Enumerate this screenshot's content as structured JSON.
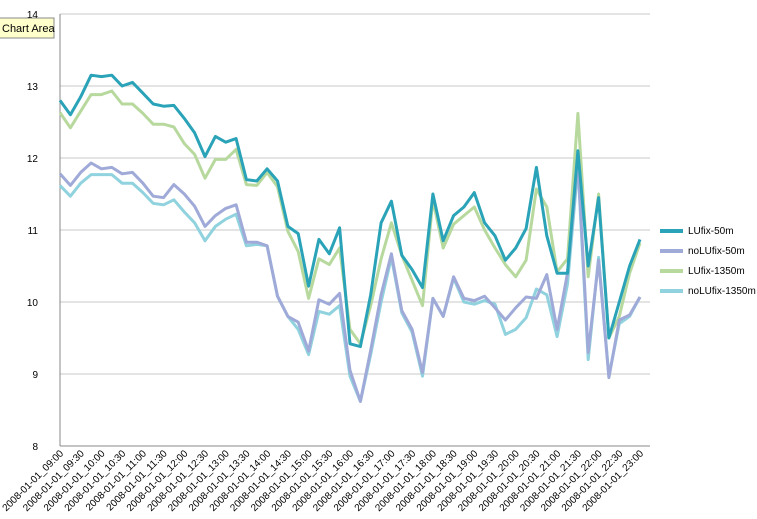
{
  "tooltip": "Chart Area",
  "chart_data": {
    "type": "line",
    "categories": [
      "2008-01-01_09:00",
      null,
      "2008-01-01_09:30",
      null,
      "2008-01-01_10:00",
      null,
      "2008-01-01_10:30",
      null,
      "2008-01-01_11:00",
      null,
      "2008-01-01_11:30",
      null,
      "2008-01-01_12:00",
      null,
      "2008-01-01_12:30",
      null,
      "2008-01-01_13:00",
      null,
      "2008-01-01_13:30",
      null,
      "2008-01-01_14:00",
      null,
      "2008-01-01_14:30",
      null,
      "2008-01-01_15:00",
      null,
      "2008-01-01_15:30",
      null,
      "2008-01-01_16:00",
      null,
      "2008-01-01_16:30",
      null,
      "2008-01-01_17:00",
      null,
      "2008-01-01_17:30",
      null,
      "2008-01-01_18:00",
      null,
      "2008-01-01_18:30",
      null,
      "2008-01-01_19:00",
      null,
      "2008-01-01_19:30",
      null,
      "2008-01-01_20:00",
      null,
      "2008-01-01_20:30",
      null,
      "2008-01-01_21:00",
      null,
      "2008-01-01_21:30",
      null,
      "2008-01-01_22:00",
      null,
      "2008-01-01_22:30",
      null,
      "2008-01-01_23:00"
    ],
    "series": [
      {
        "name": "LUfix-50m",
        "color": "#2aa3b8",
        "values": [
          12.8,
          12.6,
          12.85,
          13.15,
          13.13,
          13.15,
          13.0,
          13.05,
          12.9,
          12.75,
          12.72,
          12.73,
          12.55,
          12.35,
          12.02,
          12.3,
          12.22,
          12.27,
          11.7,
          11.68,
          11.85,
          11.68,
          11.05,
          10.95,
          10.22,
          10.87,
          10.67,
          11.03,
          9.42,
          9.38,
          10.1,
          11.1,
          11.4,
          10.65,
          10.45,
          10.2,
          11.5,
          10.85,
          11.2,
          11.32,
          11.52,
          11.1,
          10.92,
          10.58,
          10.75,
          11.02,
          11.87,
          10.92,
          10.4,
          10.4,
          12.1,
          10.5,
          11.45,
          9.5,
          10.0,
          10.5,
          10.87
        ]
      },
      {
        "name": "noLUfix-50m",
        "color": "#a0aad8",
        "values": [
          11.78,
          11.62,
          11.8,
          11.93,
          11.85,
          11.87,
          11.78,
          11.8,
          11.65,
          11.47,
          11.45,
          11.63,
          11.5,
          11.33,
          11.05,
          11.2,
          11.3,
          11.35,
          10.83,
          10.83,
          10.78,
          10.08,
          9.8,
          9.72,
          9.32,
          10.03,
          9.97,
          10.12,
          9.05,
          8.62,
          9.33,
          10.1,
          10.67,
          9.88,
          9.62,
          9.02,
          10.05,
          9.8,
          10.35,
          10.05,
          10.02,
          10.08,
          9.92,
          9.75,
          9.92,
          10.07,
          10.05,
          10.38,
          9.62,
          10.4,
          11.95,
          9.3,
          10.58,
          8.95,
          9.75,
          9.82,
          10.07
        ]
      },
      {
        "name": "LUfix-1350m",
        "color": "#b8d99e",
        "values": [
          12.63,
          12.42,
          12.65,
          12.88,
          12.88,
          12.93,
          12.75,
          12.75,
          12.62,
          12.47,
          12.47,
          12.43,
          12.2,
          12.05,
          11.72,
          11.98,
          11.98,
          12.12,
          11.63,
          11.62,
          11.8,
          11.6,
          10.98,
          10.7,
          10.05,
          10.6,
          10.52,
          10.75,
          9.62,
          9.42,
          9.95,
          10.6,
          11.1,
          10.65,
          10.3,
          9.95,
          11.42,
          10.75,
          11.08,
          11.2,
          11.32,
          11.0,
          10.75,
          10.52,
          10.35,
          10.58,
          11.57,
          11.32,
          10.42,
          10.6,
          12.62,
          10.35,
          11.5,
          9.5,
          9.8,
          10.4,
          10.82
        ]
      },
      {
        "name": "noLUfix-1350m",
        "color": "#90d2de",
        "values": [
          11.62,
          11.47,
          11.65,
          11.77,
          11.77,
          11.77,
          11.65,
          11.65,
          11.52,
          11.37,
          11.35,
          11.42,
          11.25,
          11.1,
          10.85,
          11.05,
          11.15,
          11.22,
          10.78,
          10.8,
          10.78,
          10.08,
          9.8,
          9.62,
          9.27,
          9.87,
          9.83,
          9.95,
          8.97,
          8.62,
          9.27,
          10.0,
          10.62,
          9.85,
          9.58,
          8.97,
          10.05,
          9.8,
          10.33,
          10.0,
          9.97,
          10.02,
          9.97,
          9.55,
          9.62,
          9.78,
          10.18,
          10.1,
          9.52,
          10.25,
          11.88,
          9.2,
          10.62,
          8.97,
          9.7,
          9.8,
          10.07
        ]
      }
    ],
    "ylim": [
      8,
      14
    ],
    "yticks": [
      8,
      9,
      10,
      11,
      12,
      13,
      14
    ],
    "grid": true,
    "legend": "right"
  }
}
